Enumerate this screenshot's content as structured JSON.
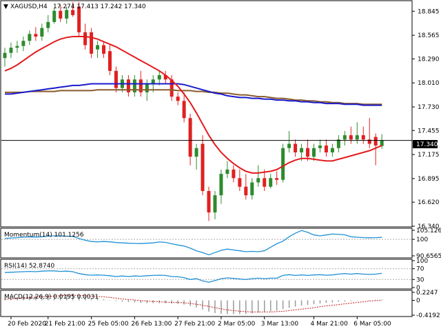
{
  "header": {
    "symbol": "XAGUSD,H4",
    "ohlc": "17.274 17.413 17.242 17.340"
  },
  "price_tag": "17.340",
  "colors": {
    "bull": "#2e8b2e",
    "bear": "#e02020",
    "ma_red": "#e31a1c",
    "ma_blue": "#1a1acc",
    "ma_brown": "#8b5a2b",
    "osc_line": "#1e90d6",
    "macd_signal": "#c02020",
    "hist": "#9a9a9a"
  },
  "chart_data": [
    {
      "type": "candlestick",
      "ylim": [
        16.34,
        18.96
      ],
      "y_ticks": [
        "18.845",
        "18.565",
        "18.290",
        "18.010",
        "17.730",
        "17.455",
        "17.175",
        "16.895",
        "16.620",
        "16.340"
      ],
      "x_labels": [
        "20 Feb 2020",
        "21 Feb 21:00",
        "25 Feb 05:00",
        "26 Feb 13:00",
        "27 Feb 21:00",
        "2 Mar 05:00",
        "3 Mar 13:00",
        "4 Mar 21:00",
        "6 Mar 05:00"
      ],
      "current": 17.34,
      "candles": [
        [
          18.3,
          18.42,
          18.2,
          18.36
        ],
        [
          18.36,
          18.48,
          18.3,
          18.42
        ],
        [
          18.42,
          18.5,
          18.36,
          18.44
        ],
        [
          18.44,
          18.55,
          18.38,
          18.5
        ],
        [
          18.5,
          18.62,
          18.45,
          18.58
        ],
        [
          18.58,
          18.66,
          18.5,
          18.55
        ],
        [
          18.55,
          18.7,
          18.5,
          18.65
        ],
        [
          18.65,
          18.8,
          18.6,
          18.72
        ],
        [
          18.72,
          18.88,
          18.7,
          18.85
        ],
        [
          18.85,
          18.92,
          18.72,
          18.76
        ],
        [
          18.76,
          18.9,
          18.7,
          18.86
        ],
        [
          18.86,
          18.95,
          18.78,
          18.8
        ],
        [
          18.9,
          18.95,
          18.55,
          18.6
        ],
        [
          18.6,
          18.7,
          18.4,
          18.45
        ],
        [
          18.6,
          18.65,
          18.3,
          18.35
        ],
        [
          18.4,
          18.5,
          18.3,
          18.45
        ],
        [
          18.45,
          18.5,
          18.3,
          18.35
        ],
        [
          18.38,
          18.45,
          18.1,
          18.15
        ],
        [
          18.15,
          18.2,
          17.9,
          17.95
        ],
        [
          17.95,
          18.1,
          17.9,
          18.05
        ],
        [
          18.05,
          18.1,
          17.85,
          17.9
        ],
        [
          17.9,
          18.1,
          17.85,
          18.05
        ],
        [
          18.05,
          18.15,
          17.85,
          17.9
        ],
        [
          17.9,
          18.05,
          17.8,
          18.0
        ],
        [
          18.0,
          18.1,
          17.9,
          18.05
        ],
        [
          18.05,
          18.15,
          17.98,
          18.1
        ],
        [
          18.1,
          18.15,
          18.0,
          18.05
        ],
        [
          18.05,
          18.1,
          17.8,
          17.85
        ],
        [
          17.85,
          17.9,
          17.75,
          17.8
        ],
        [
          17.8,
          17.9,
          17.55,
          17.6
        ],
        [
          17.6,
          17.65,
          17.05,
          17.15
        ],
        [
          17.15,
          17.3,
          17.0,
          17.25
        ],
        [
          17.3,
          17.4,
          16.7,
          16.75
        ],
        [
          16.75,
          16.8,
          16.4,
          16.5
        ],
        [
          16.5,
          16.75,
          16.42,
          16.7
        ],
        [
          16.7,
          17.0,
          16.6,
          16.95
        ],
        [
          16.95,
          17.1,
          16.9,
          17.0
        ],
        [
          17.0,
          17.05,
          16.85,
          16.9
        ],
        [
          16.9,
          17.0,
          16.75,
          16.8
        ],
        [
          16.8,
          16.95,
          16.65,
          16.7
        ],
        [
          16.7,
          16.9,
          16.65,
          16.85
        ],
        [
          16.85,
          17.05,
          16.8,
          16.9
        ],
        [
          16.9,
          17.0,
          16.75,
          16.8
        ],
        [
          16.8,
          16.95,
          16.78,
          16.9
        ],
        [
          16.9,
          16.98,
          16.82,
          16.88
        ],
        [
          16.88,
          17.3,
          16.85,
          17.25
        ],
        [
          17.25,
          17.45,
          17.2,
          17.3
        ],
        [
          17.3,
          17.35,
          17.15,
          17.2
        ],
        [
          17.2,
          17.3,
          17.1,
          17.25
        ],
        [
          17.25,
          17.35,
          17.1,
          17.15
        ],
        [
          17.15,
          17.3,
          17.1,
          17.25
        ],
        [
          17.25,
          17.35,
          17.2,
          17.28
        ],
        [
          17.28,
          17.35,
          17.15,
          17.2
        ],
        [
          17.2,
          17.3,
          17.15,
          17.25
        ],
        [
          17.25,
          17.4,
          17.2,
          17.35
        ],
        [
          17.35,
          17.45,
          17.28,
          17.4
        ],
        [
          17.4,
          17.5,
          17.3,
          17.35
        ],
        [
          17.35,
          17.55,
          17.3,
          17.4
        ],
        [
          17.4,
          17.5,
          17.3,
          17.35
        ],
        [
          17.35,
          17.6,
          17.25,
          17.3
        ],
        [
          17.38,
          17.42,
          17.05,
          17.28
        ],
        [
          17.274,
          17.413,
          17.242,
          17.34
        ]
      ],
      "ma_red": [
        18.15,
        18.18,
        18.22,
        18.27,
        18.32,
        18.37,
        18.41,
        18.45,
        18.49,
        18.52,
        18.54,
        18.55,
        18.55,
        18.55,
        18.54,
        18.52,
        18.49,
        18.46,
        18.43,
        18.39,
        18.35,
        18.31,
        18.27,
        18.23,
        18.19,
        18.15,
        18.1,
        18.04,
        17.97,
        17.88,
        17.78,
        17.66,
        17.53,
        17.4,
        17.29,
        17.2,
        17.13,
        17.07,
        17.02,
        16.98,
        16.96,
        16.96,
        16.97,
        16.98,
        17.0,
        17.04,
        17.08,
        17.11,
        17.13,
        17.13,
        17.12,
        17.11,
        17.1,
        17.1,
        17.12,
        17.14,
        17.16,
        17.18,
        17.2,
        17.22,
        17.25,
        17.28
      ],
      "ma_blue": [
        17.88,
        17.88,
        17.89,
        17.9,
        17.91,
        17.92,
        17.93,
        17.94,
        17.95,
        17.96,
        17.97,
        17.98,
        17.98,
        17.99,
        18.0,
        18.0,
        18.0,
        18.0,
        18.0,
        18.0,
        18.0,
        18.0,
        18.0,
        18.0,
        18.0,
        18.0,
        18.0,
        18.0,
        18.0,
        17.99,
        17.97,
        17.95,
        17.93,
        17.91,
        17.89,
        17.88,
        17.86,
        17.85,
        17.84,
        17.84,
        17.83,
        17.83,
        17.82,
        17.82,
        17.81,
        17.81,
        17.8,
        17.8,
        17.79,
        17.79,
        17.78,
        17.78,
        17.77,
        17.77,
        17.77,
        17.76,
        17.76,
        17.76,
        17.75,
        17.75,
        17.75,
        17.75
      ],
      "ma_brown": [
        17.9,
        17.9,
        17.9,
        17.9,
        17.91,
        17.91,
        17.91,
        17.91,
        17.91,
        17.92,
        17.92,
        17.92,
        17.92,
        17.92,
        17.92,
        17.93,
        17.93,
        17.93,
        17.93,
        17.93,
        17.93,
        17.93,
        17.93,
        17.93,
        17.93,
        17.93,
        17.93,
        17.93,
        17.92,
        17.92,
        17.92,
        17.91,
        17.91,
        17.9,
        17.9,
        17.89,
        17.89,
        17.88,
        17.87,
        17.87,
        17.86,
        17.85,
        17.85,
        17.84,
        17.83,
        17.83,
        17.82,
        17.81,
        17.81,
        17.8,
        17.8,
        17.79,
        17.79,
        17.78,
        17.78,
        17.77,
        17.77,
        17.77,
        17.76,
        17.76,
        17.76,
        17.76
      ]
    },
    {
      "type": "line",
      "title": "Momentum(14) 101.1256",
      "ylim": [
        90.6565,
        105.1261
      ],
      "y_ticks": [
        "105.1261",
        "100",
        "90.6565"
      ],
      "level": 100,
      "values": [
        100.5,
        100.8,
        101.0,
        101.2,
        101.4,
        101.3,
        101.5,
        101.8,
        102.0,
        101.9,
        101.8,
        101.6,
        100.5,
        99.5,
        98.8,
        98.6,
        98.8,
        98.6,
        98.2,
        98.0,
        97.8,
        97.7,
        97.6,
        97.8,
        98.0,
        98.5,
        98.3,
        97.5,
        96.8,
        96.2,
        95.0,
        93.5,
        92.5,
        91.2,
        92.5,
        93.8,
        94.5,
        94.0,
        93.5,
        93.0,
        93.2,
        93.0,
        93.5,
        95.5,
        97.5,
        99.0,
        101.5,
        103.5,
        105.0,
        104.0,
        102.5,
        102.0,
        102.5,
        103.0,
        102.8,
        102.6,
        101.5,
        101.2,
        101.0,
        100.9,
        101.0,
        101.1256
      ]
    },
    {
      "type": "line",
      "title": "RSI(14) 52.8740",
      "ylim": [
        0,
        100
      ],
      "y_ticks": [
        "100",
        "70",
        "30",
        "0"
      ],
      "levels": [
        70,
        30
      ],
      "values": [
        56,
        57,
        58,
        59,
        60,
        59,
        61,
        62,
        62,
        60,
        61,
        59,
        52,
        48,
        46,
        47,
        46,
        44,
        41,
        43,
        41,
        43,
        42,
        44,
        45,
        46,
        45,
        41,
        40,
        37,
        30,
        33,
        25,
        20,
        26,
        33,
        36,
        34,
        32,
        30,
        33,
        35,
        33,
        35,
        35,
        45,
        48,
        45,
        47,
        45,
        47,
        48,
        46,
        47,
        50,
        52,
        50,
        52,
        50,
        49,
        50,
        52.874
      ]
    },
    {
      "type": "bar",
      "title": "MACD(12,26,9) 0.0195 0.0031",
      "ylim": [
        -0.4192,
        0.2247
      ],
      "y_ticks": [
        "0.2247",
        "0",
        "-0.4192"
      ],
      "values": [
        0.05,
        0.07,
        0.09,
        0.11,
        0.13,
        0.14,
        0.15,
        0.16,
        0.17,
        0.17,
        0.17,
        0.16,
        0.13,
        0.1,
        0.07,
        0.05,
        0.03,
        0.01,
        -0.02,
        -0.04,
        -0.05,
        -0.06,
        -0.07,
        -0.08,
        -0.08,
        -0.08,
        -0.08,
        -0.09,
        -0.1,
        -0.12,
        -0.16,
        -0.2,
        -0.26,
        -0.32,
        -0.36,
        -0.38,
        -0.39,
        -0.39,
        -0.39,
        -0.38,
        -0.37,
        -0.35,
        -0.33,
        -0.31,
        -0.29,
        -0.25,
        -0.21,
        -0.18,
        -0.15,
        -0.13,
        -0.11,
        -0.09,
        -0.07,
        -0.06,
        -0.04,
        -0.03,
        -0.02,
        -0.01,
        0.0,
        0.01,
        0.015,
        0.0195
      ],
      "signal": [
        0.03,
        0.04,
        0.05,
        0.07,
        0.08,
        0.09,
        0.1,
        0.11,
        0.12,
        0.13,
        0.14,
        0.14,
        0.14,
        0.13,
        0.12,
        0.11,
        0.1,
        0.08,
        0.06,
        0.04,
        0.02,
        0.01,
        -0.01,
        -0.02,
        -0.03,
        -0.04,
        -0.05,
        -0.06,
        -0.06,
        -0.07,
        -0.09,
        -0.11,
        -0.14,
        -0.17,
        -0.21,
        -0.24,
        -0.27,
        -0.29,
        -0.31,
        -0.32,
        -0.33,
        -0.33,
        -0.33,
        -0.33,
        -0.32,
        -0.31,
        -0.29,
        -0.27,
        -0.25,
        -0.23,
        -0.21,
        -0.18,
        -0.16,
        -0.14,
        -0.12,
        -0.1,
        -0.08,
        -0.06,
        -0.04,
        -0.02,
        -0.01,
        0.0031
      ]
    }
  ]
}
